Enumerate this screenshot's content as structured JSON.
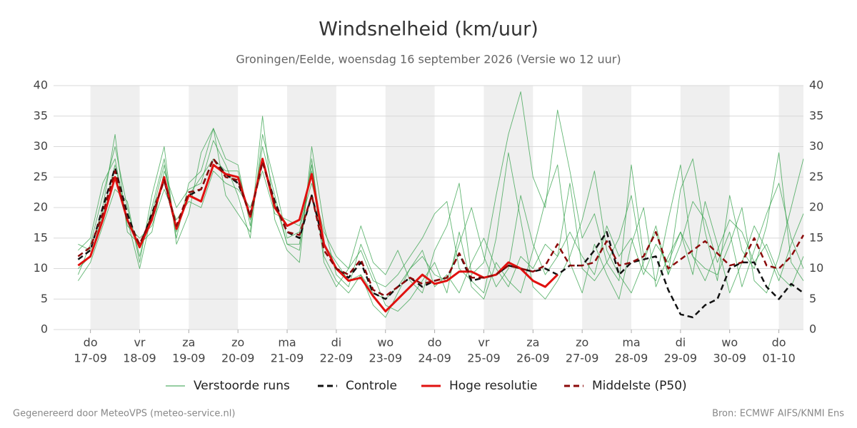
{
  "chart_data": {
    "type": "line",
    "title": "Windsnelheid (km/uur)",
    "subtitle": "Groningen/Eelde, woensdag 16 september 2026 (Versie wo 12 uur)",
    "footer_left": "Gegenereerd door MeteoVPS (meteo-service.nl)",
    "footer_right": "Bron: ECMWF AIFS/KNMI Ens",
    "xlim": [
      -0.75,
      14.5
    ],
    "xticks": [
      {
        "value": 0,
        "day": "do",
        "label": "17-09"
      },
      {
        "value": 1,
        "day": "vr",
        "label": "18-09"
      },
      {
        "value": 2,
        "day": "za",
        "label": "19-09"
      },
      {
        "value": 3,
        "day": "zo",
        "label": "20-09"
      },
      {
        "value": 4,
        "day": "ma",
        "label": "21-09"
      },
      {
        "value": 5,
        "day": "di",
        "label": "22-09"
      },
      {
        "value": 6,
        "day": "wo",
        "label": "23-09"
      },
      {
        "value": 7,
        "day": "do",
        "label": "24-09"
      },
      {
        "value": 8,
        "day": "vr",
        "label": "25-09"
      },
      {
        "value": 9,
        "day": "za",
        "label": "26-09"
      },
      {
        "value": 10,
        "day": "zo",
        "label": "27-09"
      },
      {
        "value": 11,
        "day": "ma",
        "label": "28-09"
      },
      {
        "value": 12,
        "day": "di",
        "label": "29-09"
      },
      {
        "value": 13,
        "day": "wo",
        "label": "30-09"
      },
      {
        "value": 14,
        "day": "do",
        "label": "01-10"
      }
    ],
    "ylim": [
      0,
      40
    ],
    "yticks": [
      0,
      5,
      10,
      15,
      20,
      25,
      30,
      35,
      40
    ],
    "y2lim": [
      0,
      40
    ],
    "y2ticks": [
      0,
      5,
      10,
      15,
      20,
      25,
      30,
      35,
      40
    ],
    "grid": true,
    "x": [
      -0.25,
      0,
      0.25,
      0.5,
      0.75,
      1,
      1.25,
      1.5,
      1.75,
      2,
      2.25,
      2.5,
      2.75,
      3,
      3.25,
      3.5,
      3.75,
      4,
      4.25,
      4.5,
      4.75,
      5,
      5.25,
      5.5,
      5.75,
      6,
      6.25,
      6.5,
      6.75,
      7,
      7.25,
      7.5,
      7.75,
      8,
      8.25,
      8.5,
      8.75,
      9,
      9.25,
      9.5,
      9.75,
      10,
      10.25,
      10.5,
      10.75,
      11,
      11.25,
      11.5,
      11.75,
      12,
      12.25,
      12.5,
      12.75,
      13,
      13.25,
      13.5,
      13.75,
      14,
      14.25,
      14.5
    ],
    "ensemble": {
      "name": "Verstoorde runs",
      "color": "#2e9e44",
      "members": [
        [
          9,
          14,
          22,
          30,
          20,
          12,
          20,
          28,
          15,
          24,
          26,
          33,
          28,
          27,
          17,
          30,
          22,
          14,
          13,
          28,
          12,
          8,
          6,
          9,
          4,
          2,
          6,
          10,
          12,
          9,
          8,
          14,
          20,
          12,
          7,
          10,
          22,
          14,
          9,
          12,
          24,
          10,
          8,
          11,
          15,
          22,
          10,
          8,
          18,
          27,
          12,
          10,
          9,
          14,
          20,
          8,
          6,
          12,
          20,
          28
        ],
        [
          13,
          15,
          24,
          28,
          17,
          15,
          17,
          23,
          18,
          21,
          20,
          26,
          24,
          23,
          20,
          26,
          19,
          18,
          17,
          24,
          16,
          12,
          10,
          13,
          8,
          7,
          9,
          12,
          15,
          19,
          21,
          10,
          8,
          6,
          15,
          29,
          18,
          7,
          5,
          8,
          12,
          18,
          26,
          13,
          9,
          6,
          11,
          17,
          9,
          14,
          21,
          18,
          11,
          16,
          7,
          13,
          19,
          24,
          15,
          10
        ],
        [
          8,
          11,
          17,
          23,
          21,
          11,
          22,
          30,
          14,
          19,
          29,
          33,
          22,
          19,
          16,
          35,
          18,
          13,
          11,
          30,
          17,
          9,
          7,
          14,
          9,
          4,
          3,
          5,
          8,
          11,
          6,
          16,
          7,
          5,
          11,
          8,
          6,
          13,
          21,
          27,
          11,
          6,
          14,
          9,
          5,
          14,
          20,
          7,
          12,
          16,
          9,
          21,
          14,
          6,
          11,
          17,
          13,
          8,
          14,
          19
        ],
        [
          14,
          13,
          20,
          32,
          16,
          14,
          16,
          26,
          20,
          23,
          24,
          31,
          27,
          22,
          15,
          32,
          24,
          15,
          16,
          26,
          11,
          7,
          10,
          17,
          11,
          9,
          13,
          8,
          6,
          13,
          17,
          24,
          9,
          11,
          22,
          32,
          39,
          25,
          20,
          36,
          26,
          15,
          19,
          11,
          8,
          27,
          12,
          16,
          9,
          23,
          28,
          16,
          8,
          22,
          13,
          10,
          17,
          29,
          11,
          8
        ],
        [
          10,
          12,
          19,
          27,
          18,
          10,
          19,
          27,
          16,
          22,
          25,
          28,
          26,
          26,
          18,
          28,
          21,
          14,
          14,
          27,
          14,
          11,
          8,
          9,
          6,
          5,
          7,
          10,
          13,
          7,
          9,
          6,
          11,
          15,
          10,
          7,
          12,
          10,
          14,
          12,
          16,
          12,
          9,
          17,
          12,
          15,
          9,
          14,
          11,
          16,
          12,
          8,
          13,
          18,
          16,
          11,
          14,
          9,
          7,
          12
        ]
      ]
    },
    "series": [
      {
        "name": "Controle",
        "color": "#111111",
        "dash": true,
        "values": [
          11.5,
          13,
          20,
          26.5,
          19,
          13.5,
          19,
          24.5,
          16.5,
          22,
          23,
          28,
          25.5,
          24,
          19,
          27.5,
          21,
          16,
          15,
          22,
          14,
          10,
          8.5,
          11,
          6,
          5,
          7,
          8.5,
          7,
          8,
          8.5,
          12.5,
          8,
          8.5,
          9,
          10.5,
          10,
          9.5,
          10,
          9,
          10.5,
          10.5,
          13,
          16,
          9,
          11,
          11.5,
          12,
          6.5,
          2.5,
          2,
          4,
          5,
          10,
          11,
          11,
          7,
          5,
          7.5,
          6
        ]
      },
      {
        "name": "Hoge resolutie",
        "color": "#e0110f",
        "dash": false,
        "values": [
          10.5,
          12,
          18,
          25,
          18,
          13.5,
          18,
          25,
          16.5,
          22,
          21,
          27,
          25.5,
          25,
          18.5,
          28,
          20,
          17,
          18,
          25.5,
          14,
          10,
          8,
          8.5,
          5.5,
          3,
          5,
          7,
          9,
          7.5,
          8,
          9.5,
          9.5,
          8.5,
          9,
          11,
          10,
          8,
          7,
          9,
          null,
          null,
          null,
          null,
          null,
          null,
          null,
          null,
          null,
          null,
          null,
          null,
          null,
          null,
          null,
          null,
          null,
          null,
          null,
          null
        ]
      },
      {
        "name": "Middelste (P50)",
        "color": "#8b0a0a",
        "dash": true,
        "values": [
          12,
          13.5,
          19,
          26,
          18,
          14,
          18.5,
          24.5,
          17,
          22.5,
          23,
          28,
          25,
          24.5,
          18.5,
          27.5,
          20.5,
          16,
          15.5,
          22,
          13,
          10,
          9,
          11.5,
          6.5,
          5.5,
          7,
          8.5,
          7.5,
          8,
          8.5,
          12.5,
          8.5,
          8.5,
          9,
          10.5,
          10,
          9.5,
          10.5,
          14,
          10.5,
          10.5,
          11,
          14.5,
          10.5,
          11,
          12,
          16,
          10,
          11.5,
          13,
          14.5,
          12.5,
          10.5,
          11,
          15,
          10.5,
          10,
          12,
          15.5
        ]
      }
    ]
  }
}
